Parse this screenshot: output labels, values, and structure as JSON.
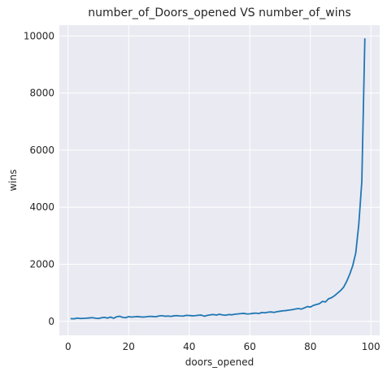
{
  "chart_data": {
    "type": "line",
    "title": "number_of_Doors_opened VS number_of_wins",
    "xlabel": "doors_opened",
    "ylabel": "wins",
    "xlim": [
      -2.9,
      102.9
    ],
    "ylim": [
      -490,
      10380
    ],
    "xticks": [
      0,
      20,
      40,
      60,
      80,
      100
    ],
    "yticks": [
      0,
      2000,
      4000,
      6000,
      8000,
      10000
    ],
    "grid": true,
    "colors": {
      "plot_bg": "#eaeaf2",
      "grid": "#ffffff",
      "line": "#1f77b4"
    },
    "series": [
      {
        "x": [
          1,
          2,
          3,
          4,
          5,
          6,
          7,
          8,
          9,
          10,
          11,
          12,
          13,
          14,
          15,
          16,
          17,
          18,
          19,
          20,
          21,
          22,
          23,
          24,
          25,
          26,
          27,
          28,
          29,
          30,
          31,
          32,
          33,
          34,
          35,
          36,
          37,
          38,
          39,
          40,
          41,
          42,
          43,
          44,
          45,
          46,
          47,
          48,
          49,
          50,
          51,
          52,
          53,
          54,
          55,
          56,
          57,
          58,
          59,
          60,
          61,
          62,
          63,
          64,
          65,
          66,
          67,
          68,
          69,
          70,
          71,
          72,
          73,
          74,
          75,
          76,
          77,
          78,
          79,
          80,
          81,
          82,
          83,
          84,
          85,
          86,
          87,
          88,
          89,
          90,
          91,
          92,
          93,
          94,
          95,
          96,
          97,
          98
        ],
        "values": [
          95,
          90,
          115,
          100,
          105,
          110,
          120,
          130,
          110,
          100,
          125,
          140,
          115,
          150,
          110,
          160,
          180,
          140,
          130,
          165,
          150,
          160,
          170,
          155,
          150,
          165,
          175,
          170,
          160,
          190,
          200,
          180,
          185,
          175,
          195,
          200,
          190,
          185,
          210,
          205,
          195,
          200,
          215,
          220,
          180,
          210,
          230,
          240,
          220,
          250,
          225,
          215,
          240,
          230,
          250,
          260,
          270,
          280,
          260,
          265,
          280,
          290,
          275,
          310,
          300,
          320,
          330,
          315,
          340,
          355,
          370,
          380,
          395,
          410,
          430,
          450,
          430,
          470,
          520,
          500,
          560,
          590,
          620,
          700,
          680,
          790,
          830,
          900,
          990,
          1080,
          1200,
          1400,
          1650,
          1950,
          2400,
          3400,
          4900,
          9900
        ]
      }
    ]
  }
}
